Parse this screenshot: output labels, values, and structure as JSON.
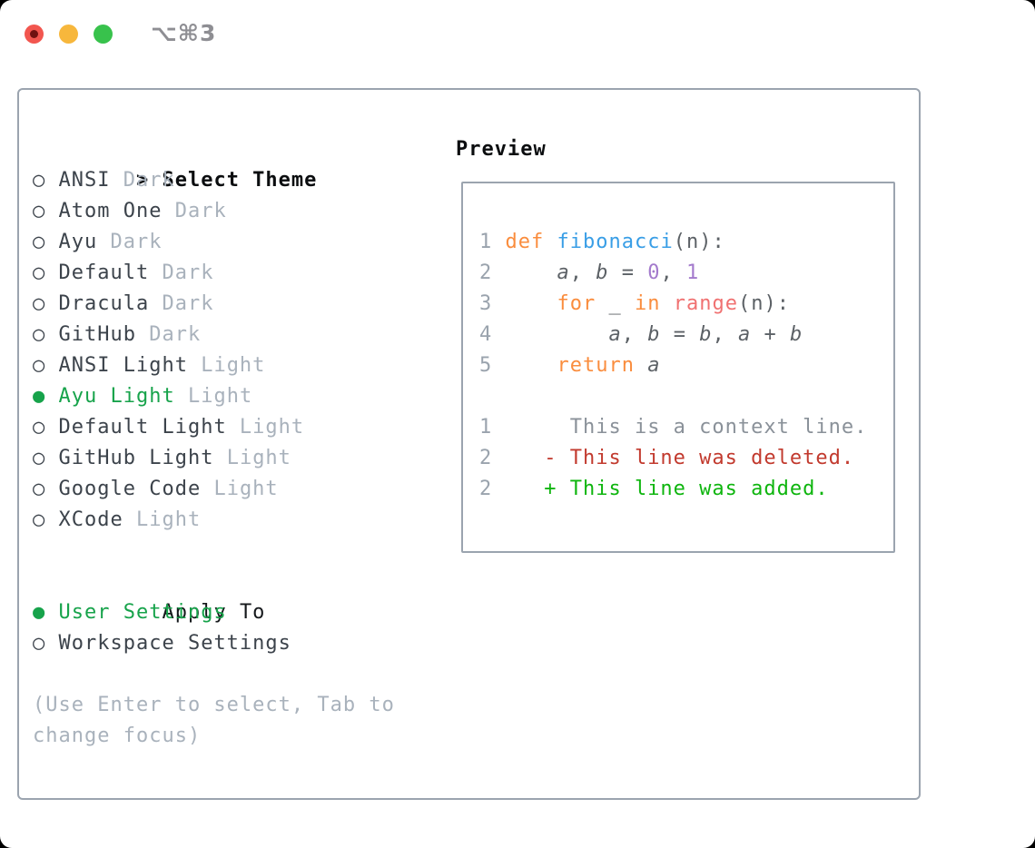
{
  "window": {
    "title_shortcut": "⌥⌘3"
  },
  "icons": {
    "radio_off": "○",
    "radio_on": "●",
    "cursor": ">"
  },
  "colors": {
    "traffic_red": "#f2564f",
    "traffic_red_dot": "#701211",
    "traffic_yellow": "#f7b73c",
    "traffic_green": "#38c24c",
    "title_gray": "#8e8e93",
    "panel_border": "#9ba4af",
    "text_dark": "#3c434b",
    "text_muted": "#a9b2bc",
    "select_green": "#17a34b",
    "line_num": "#9aa3ad",
    "code_plain": "#5c6166",
    "code_kw": "#fa8d3e",
    "code_fn": "#399ee6",
    "code_num": "#a37acc",
    "code_rng": "#f07171",
    "diff_ctx": "#8a9199",
    "diff_del": "#c23a2e",
    "diff_add": "#0eb50e"
  },
  "theme_panel": {
    "heading": "Select Theme",
    "items": [
      {
        "name": "ANSI",
        "variant": "Dark",
        "selected": false
      },
      {
        "name": "Atom One",
        "variant": "Dark",
        "selected": false
      },
      {
        "name": "Ayu",
        "variant": "Dark",
        "selected": false
      },
      {
        "name": "Default",
        "variant": "Dark",
        "selected": false
      },
      {
        "name": "Dracula",
        "variant": "Dark",
        "selected": false
      },
      {
        "name": "GitHub",
        "variant": "Dark",
        "selected": false
      },
      {
        "name": "ANSI Light",
        "variant": "Light",
        "selected": false
      },
      {
        "name": "Ayu Light",
        "variant": "Light",
        "selected": true
      },
      {
        "name": "Default Light",
        "variant": "Light",
        "selected": false
      },
      {
        "name": "GitHub Light",
        "variant": "Light",
        "selected": false
      },
      {
        "name": "Google Code",
        "variant": "Light",
        "selected": false
      },
      {
        "name": "XCode",
        "variant": "Light",
        "selected": false
      }
    ],
    "apply_to": {
      "heading": "Apply To",
      "options": [
        {
          "label": "User Settings",
          "selected": true
        },
        {
          "label": "Workspace Settings",
          "selected": false
        }
      ]
    },
    "hint_lines": [
      "(Use Enter to select, Tab to",
      "change focus)"
    ]
  },
  "preview": {
    "heading": "Preview",
    "code_lines": [
      {
        "num": "1",
        "segments": [
          [
            "def",
            "kw"
          ],
          [
            " ",
            "plain"
          ],
          [
            "fibonacci",
            "fn"
          ],
          [
            "(n):",
            "plain"
          ]
        ]
      },
      {
        "num": "2",
        "segments": [
          [
            "    ",
            "plain"
          ],
          [
            "a",
            "var"
          ],
          [
            ", ",
            "plain"
          ],
          [
            "b",
            "var"
          ],
          [
            " = ",
            "plain"
          ],
          [
            "0",
            "num"
          ],
          [
            ", ",
            "plain"
          ],
          [
            "1",
            "num"
          ]
        ]
      },
      {
        "num": "3",
        "segments": [
          [
            "    ",
            "plain"
          ],
          [
            "for",
            "kw"
          ],
          [
            " _ ",
            "plain"
          ],
          [
            "in",
            "kw"
          ],
          [
            " ",
            "plain"
          ],
          [
            "range",
            "rng"
          ],
          [
            "(n):",
            "plain"
          ]
        ]
      },
      {
        "num": "4",
        "segments": [
          [
            "        ",
            "plain"
          ],
          [
            "a",
            "var"
          ],
          [
            ", ",
            "plain"
          ],
          [
            "b",
            "var"
          ],
          [
            " = ",
            "plain"
          ],
          [
            "b",
            "var"
          ],
          [
            ", ",
            "plain"
          ],
          [
            "a",
            "var"
          ],
          [
            " + ",
            "plain"
          ],
          [
            "b",
            "var"
          ]
        ]
      },
      {
        "num": "5",
        "segments": [
          [
            "    ",
            "plain"
          ],
          [
            "return",
            "kw"
          ],
          [
            " ",
            "plain"
          ],
          [
            "a",
            "var"
          ]
        ]
      }
    ],
    "diff_lines": [
      {
        "num": "1",
        "text": "      This is a context line.",
        "kind": "ctx"
      },
      {
        "num": "2",
        "text": "    - This line was deleted.",
        "kind": "del"
      },
      {
        "num": "2",
        "text": "    + This line was added.",
        "kind": "add"
      }
    ]
  }
}
